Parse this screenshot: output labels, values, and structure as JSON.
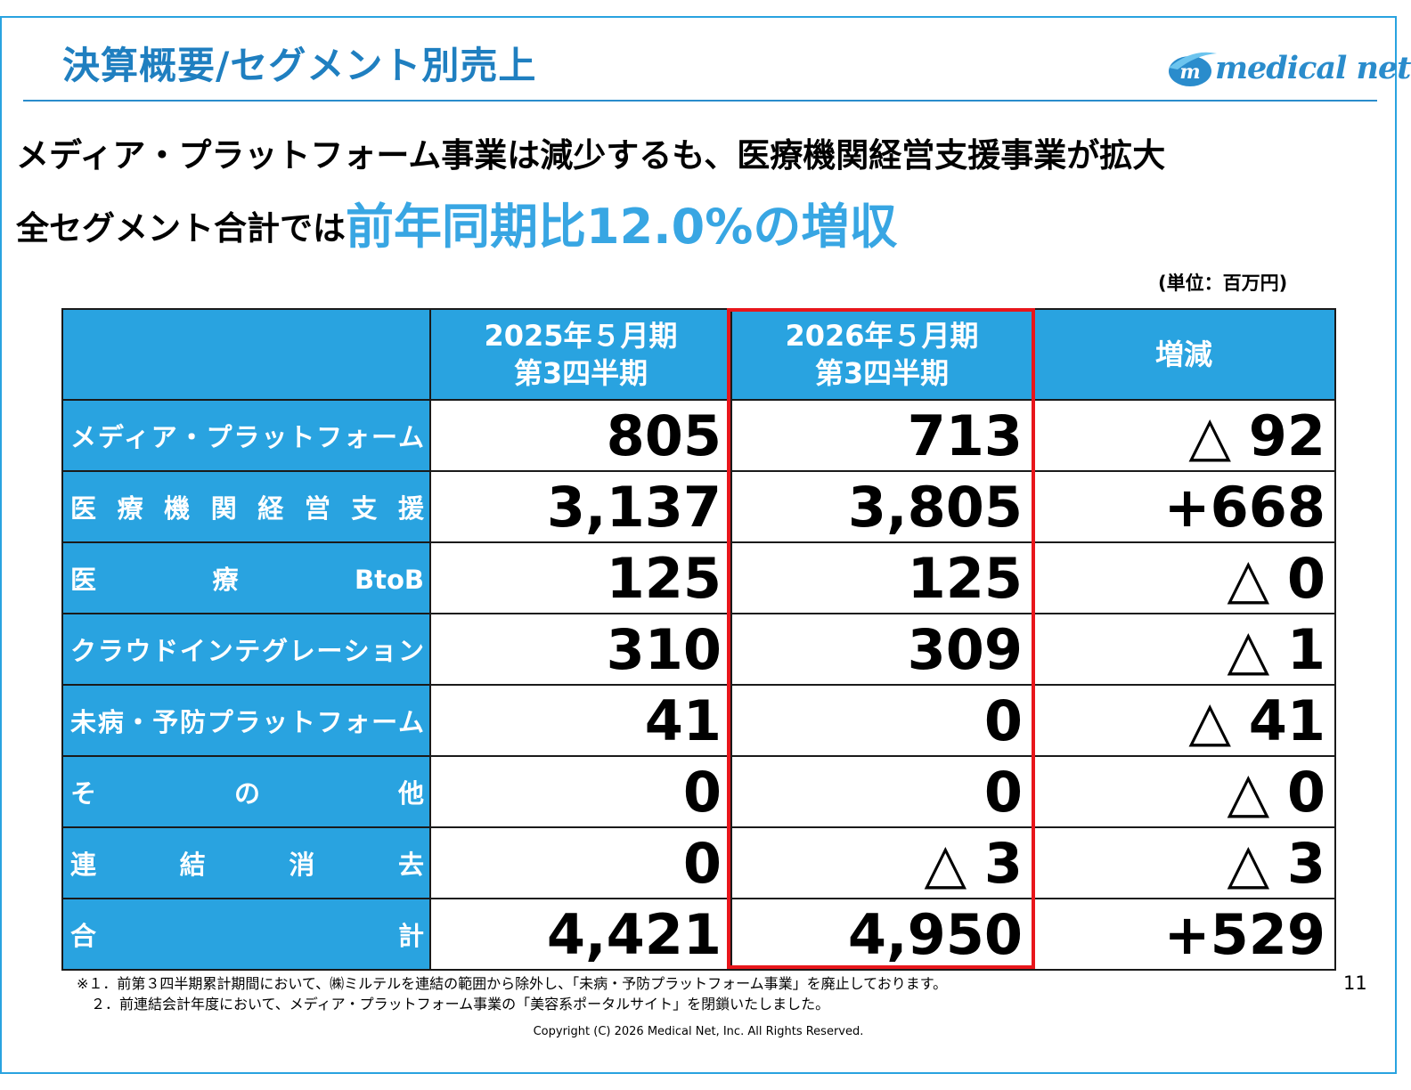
{
  "title": "決算概要/セグメント別売上",
  "logo": {
    "text": "medical net",
    "mark": "m"
  },
  "headline": {
    "line1": "メディア・プラットフォーム事業は減少するも、医療機関経営支援事業が拡大",
    "line2_prefix": "全セグメント合計では",
    "line2_accent": "前年同期比12.0%の増収"
  },
  "unit_label": "(単位：百万円)",
  "table": {
    "headers": {
      "prev": "2025年５月期\n第3四半期",
      "curr": "2026年５月期\n第3四半期",
      "change": "増減"
    },
    "rows": [
      {
        "label": "メディア・プラットフォーム",
        "prev": "805",
        "curr": "713",
        "change_prefix": "△ ",
        "change_value": "92",
        "change_negative": true
      },
      {
        "label": "医療機関経営支援",
        "prev": "3,137",
        "curr": "3,805",
        "change_prefix": "",
        "change_value": "+668",
        "change_negative": false
      },
      {
        "label": "医療BtoB",
        "prev": "125",
        "curr": "125",
        "change_prefix": "△ ",
        "change_value": "0",
        "change_negative": true
      },
      {
        "label": "クラウドインテグレーション",
        "prev": "310",
        "curr": "309",
        "change_prefix": "△ ",
        "change_value": "1",
        "change_negative": true
      },
      {
        "label": "未病・予防プラットフォーム",
        "prev": "41",
        "curr": "0",
        "change_prefix": "△ ",
        "change_value": "41",
        "change_negative": true
      },
      {
        "label": "その他",
        "prev": "0",
        "curr": "0",
        "change_prefix": "△ ",
        "change_value": "0",
        "change_negative": true
      },
      {
        "label": "連結消去",
        "prev": "0",
        "curr_prefix": "△ ",
        "curr": "3",
        "change_prefix": "△ ",
        "change_value": "3",
        "change_negative": true
      },
      {
        "label": "合計",
        "prev": "4,421",
        "curr": "4,950",
        "change_prefix": "",
        "change_value": "+529",
        "change_negative": false
      }
    ]
  },
  "notes": [
    "※１．前第３四半期累計期間において、㈱ミルテルを連結の範囲から除外し、「未病・予防プラットフォーム事業」を廃止しております。",
    "　２．前連結会計年度において、メディア・プラットフォーム事業の「美容系ポータルサイト」を閉鎖いたしました。"
  ],
  "page_number": "11",
  "copyright": "Copyright (C) 2026 Medical Net, Inc. All Rights Reserved.",
  "colors": {
    "accent": "#29a3e0",
    "title": "#1f7fc0",
    "negative": "#e8161b",
    "highlight": "#e8161b"
  }
}
